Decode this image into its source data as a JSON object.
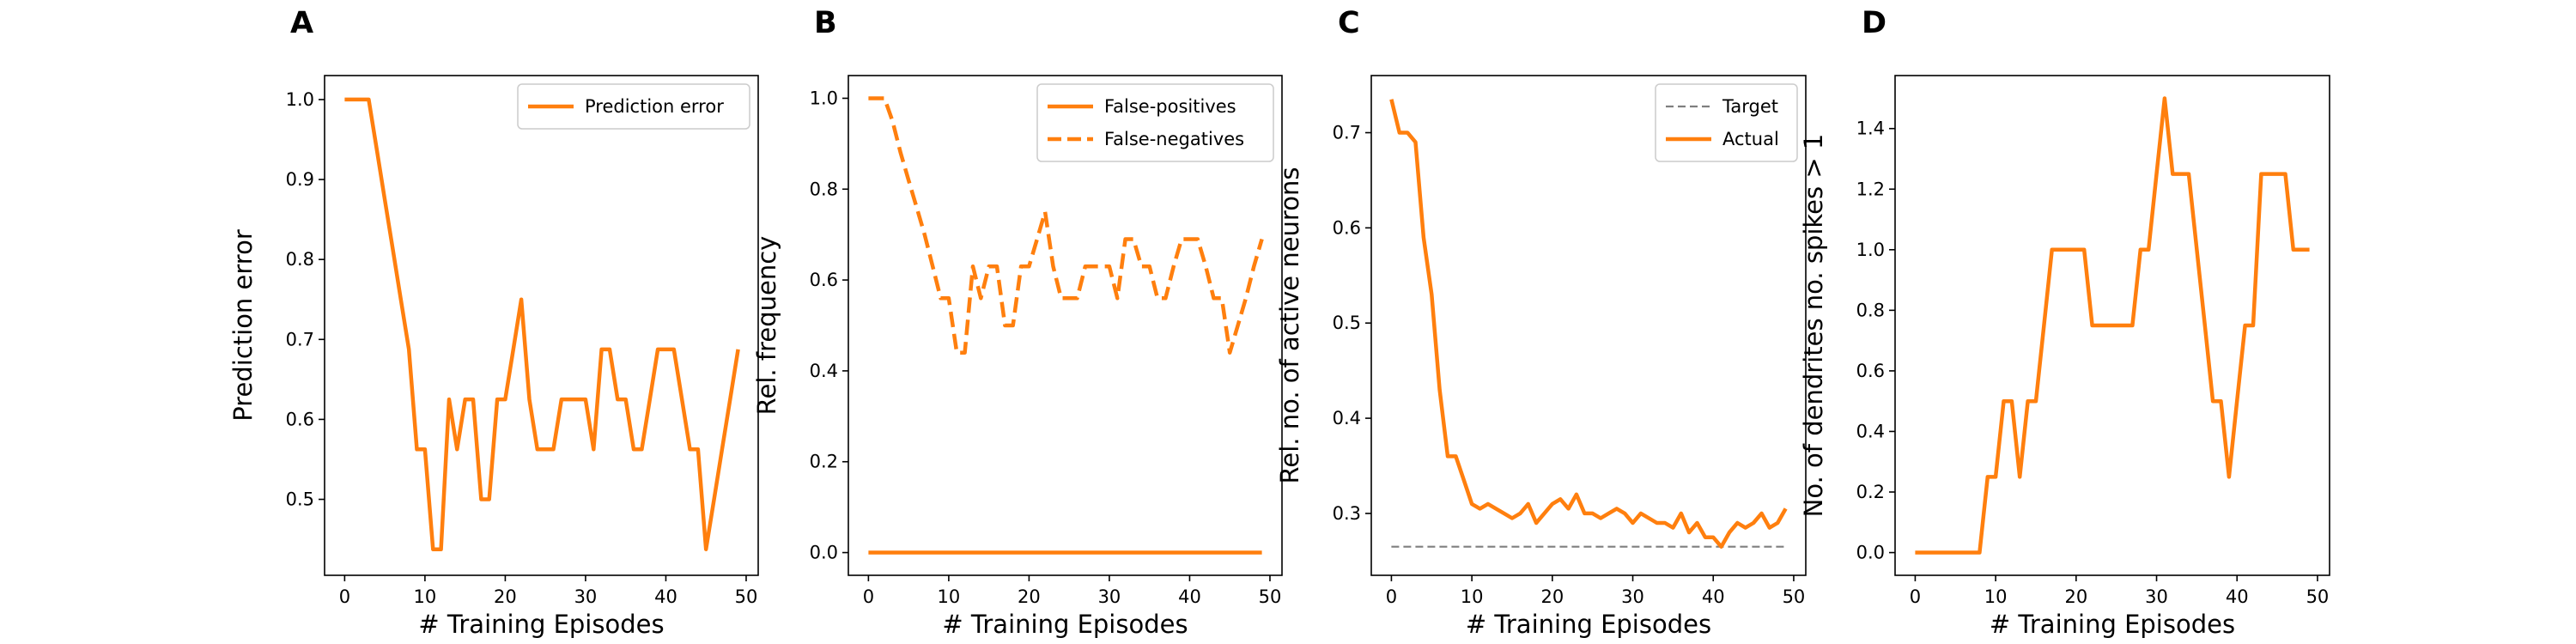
{
  "chart_data": [
    {
      "panel": "A",
      "type": "line",
      "xlabel": "# Training Episodes",
      "ylabel": "Prediction error",
      "xlim": [
        -2.5,
        51.5
      ],
      "ylim": [
        0.405,
        1.03
      ],
      "xticks": [
        0,
        10,
        20,
        30,
        40,
        50
      ],
      "yticks": [
        0.5,
        0.6,
        0.7,
        0.8,
        0.9,
        1.0
      ],
      "ytick_labels": [
        "0.5",
        "0.6",
        "0.7",
        "0.8",
        "0.9",
        "1.0"
      ],
      "legend_position": "top-right",
      "series": [
        {
          "name": "Prediction error",
          "color": "#ff7f0e",
          "style": "solid",
          "x": [
            0,
            1,
            2,
            3,
            4,
            5,
            6,
            7,
            8,
            9,
            10,
            11,
            12,
            13,
            14,
            15,
            16,
            17,
            18,
            19,
            20,
            21,
            22,
            23,
            24,
            25,
            26,
            27,
            28,
            29,
            30,
            31,
            32,
            33,
            34,
            35,
            36,
            37,
            38,
            39,
            40,
            41,
            42,
            43,
            44,
            45,
            46,
            47,
            48,
            49
          ],
          "y": [
            1.0,
            1.0,
            1.0,
            1.0,
            0.9375,
            0.875,
            0.8125,
            0.75,
            0.6875,
            0.5625,
            0.5625,
            0.4375,
            0.4375,
            0.625,
            0.5625,
            0.625,
            0.625,
            0.5,
            0.5,
            0.625,
            0.625,
            0.6875,
            0.75,
            0.625,
            0.5625,
            0.5625,
            0.5625,
            0.625,
            0.625,
            0.625,
            0.625,
            0.5625,
            0.6875,
            0.6875,
            0.625,
            0.625,
            0.5625,
            0.5625,
            0.625,
            0.6875,
            0.6875,
            0.6875,
            0.625,
            0.5625,
            0.5625,
            0.4375,
            0.5,
            0.5625,
            0.625,
            0.6875
          ]
        }
      ]
    },
    {
      "panel": "B",
      "type": "line",
      "xlabel": "# Training Episodes",
      "ylabel": "Rel. frequency",
      "xlim": [
        -2.5,
        51.5
      ],
      "ylim": [
        -0.05,
        1.05
      ],
      "xticks": [
        0,
        10,
        20,
        30,
        40,
        50
      ],
      "yticks": [
        0.0,
        0.2,
        0.4,
        0.6,
        0.8,
        1.0
      ],
      "ytick_labels": [
        "0.0",
        "0.2",
        "0.4",
        "0.6",
        "0.8",
        "1.0"
      ],
      "legend_position": "top-right",
      "series": [
        {
          "name": "False-positives",
          "color": "#ff7f0e",
          "style": "solid",
          "x": [
            0,
            49
          ],
          "y": [
            0,
            0
          ]
        },
        {
          "name": "False-negatives",
          "color": "#ff7f0e",
          "style": "dashed",
          "x": [
            0,
            1,
            2,
            3,
            4,
            5,
            6,
            7,
            8,
            9,
            10,
            11,
            12,
            13,
            14,
            15,
            16,
            17,
            18,
            19,
            20,
            21,
            22,
            23,
            24,
            25,
            26,
            27,
            28,
            29,
            30,
            31,
            32,
            33,
            34,
            35,
            36,
            37,
            38,
            39,
            40,
            41,
            42,
            43,
            44,
            45,
            46,
            47,
            48,
            49
          ],
          "y": [
            1.0,
            1.0,
            1.0,
            0.95,
            0.88,
            0.82,
            0.76,
            0.7,
            0.63,
            0.56,
            0.56,
            0.44,
            0.44,
            0.63,
            0.56,
            0.63,
            0.63,
            0.5,
            0.5,
            0.63,
            0.63,
            0.69,
            0.75,
            0.63,
            0.56,
            0.56,
            0.56,
            0.63,
            0.63,
            0.63,
            0.63,
            0.56,
            0.69,
            0.69,
            0.63,
            0.63,
            0.56,
            0.56,
            0.63,
            0.69,
            0.69,
            0.69,
            0.63,
            0.56,
            0.56,
            0.44,
            0.5,
            0.56,
            0.63,
            0.69
          ]
        }
      ]
    },
    {
      "panel": "C",
      "type": "line",
      "xlabel": "# Training Episodes",
      "ylabel": "Rel. no. of active neurons",
      "xlim": [
        -2.5,
        51.5
      ],
      "ylim": [
        0.235,
        0.76
      ],
      "xticks": [
        0,
        10,
        20,
        30,
        40,
        50
      ],
      "yticks": [
        0.3,
        0.4,
        0.5,
        0.6,
        0.7
      ],
      "ytick_labels": [
        "0.3",
        "0.4",
        "0.5",
        "0.6",
        "0.7"
      ],
      "legend_position": "top-right",
      "series": [
        {
          "name": "Target",
          "color": "#7f7f7f",
          "style": "dashed",
          "x": [
            0,
            49
          ],
          "y": [
            0.265,
            0.265
          ]
        },
        {
          "name": "Actual",
          "color": "#ff7f0e",
          "style": "solid",
          "x": [
            0,
            1,
            2,
            3,
            4,
            5,
            6,
            7,
            8,
            9,
            10,
            11,
            12,
            13,
            14,
            15,
            16,
            17,
            18,
            19,
            20,
            21,
            22,
            23,
            24,
            25,
            26,
            27,
            28,
            29,
            30,
            31,
            32,
            33,
            34,
            35,
            36,
            37,
            38,
            39,
            40,
            41,
            42,
            43,
            44,
            45,
            46,
            47,
            48,
            49
          ],
          "y": [
            0.735,
            0.7,
            0.7,
            0.69,
            0.59,
            0.53,
            0.43,
            0.36,
            0.36,
            0.335,
            0.31,
            0.305,
            0.31,
            0.305,
            0.3,
            0.295,
            0.3,
            0.31,
            0.29,
            0.3,
            0.31,
            0.315,
            0.305,
            0.32,
            0.3,
            0.3,
            0.295,
            0.3,
            0.305,
            0.3,
            0.29,
            0.3,
            0.295,
            0.29,
            0.29,
            0.285,
            0.3,
            0.28,
            0.29,
            0.275,
            0.275,
            0.265,
            0.28,
            0.29,
            0.285,
            0.29,
            0.3,
            0.285,
            0.29,
            0.305
          ]
        }
      ]
    },
    {
      "panel": "D",
      "type": "line",
      "xlabel": "# Training Episodes",
      "ylabel": "No. of dendrites no. spikes > 1",
      "xlim": [
        -2.5,
        51.5
      ],
      "ylim": [
        -0.075,
        1.575
      ],
      "xticks": [
        0,
        10,
        20,
        30,
        40,
        50
      ],
      "yticks": [
        0.0,
        0.2,
        0.4,
        0.6,
        0.8,
        1.0,
        1.2,
        1.4
      ],
      "ytick_labels": [
        "0.0",
        "0.2",
        "0.4",
        "0.6",
        "0.8",
        "1.0",
        "1.2",
        "1.4"
      ],
      "series": [
        {
          "color": "#ff7f0e",
          "style": "solid",
          "x": [
            0,
            1,
            2,
            3,
            4,
            5,
            6,
            7,
            8,
            9,
            10,
            11,
            12,
            13,
            14,
            15,
            16,
            17,
            18,
            19,
            20,
            21,
            22,
            23,
            24,
            25,
            26,
            27,
            28,
            29,
            30,
            31,
            32,
            33,
            34,
            35,
            36,
            37,
            38,
            39,
            40,
            41,
            42,
            43,
            44,
            45,
            46,
            47,
            48,
            49
          ],
          "y": [
            0,
            0,
            0,
            0,
            0,
            0,
            0,
            0,
            0,
            0.25,
            0.25,
            0.5,
            0.5,
            0.25,
            0.5,
            0.5,
            0.75,
            1.0,
            1.0,
            1.0,
            1.0,
            1.0,
            0.75,
            0.75,
            0.75,
            0.75,
            0.75,
            0.75,
            1.0,
            1.0,
            1.25,
            1.5,
            1.25,
            1.25,
            1.25,
            1.0,
            0.75,
            0.5,
            0.5,
            0.25,
            0.5,
            0.75,
            0.75,
            1.25,
            1.25,
            1.25,
            1.25,
            1.0,
            1.0,
            1.0
          ]
        }
      ]
    }
  ]
}
